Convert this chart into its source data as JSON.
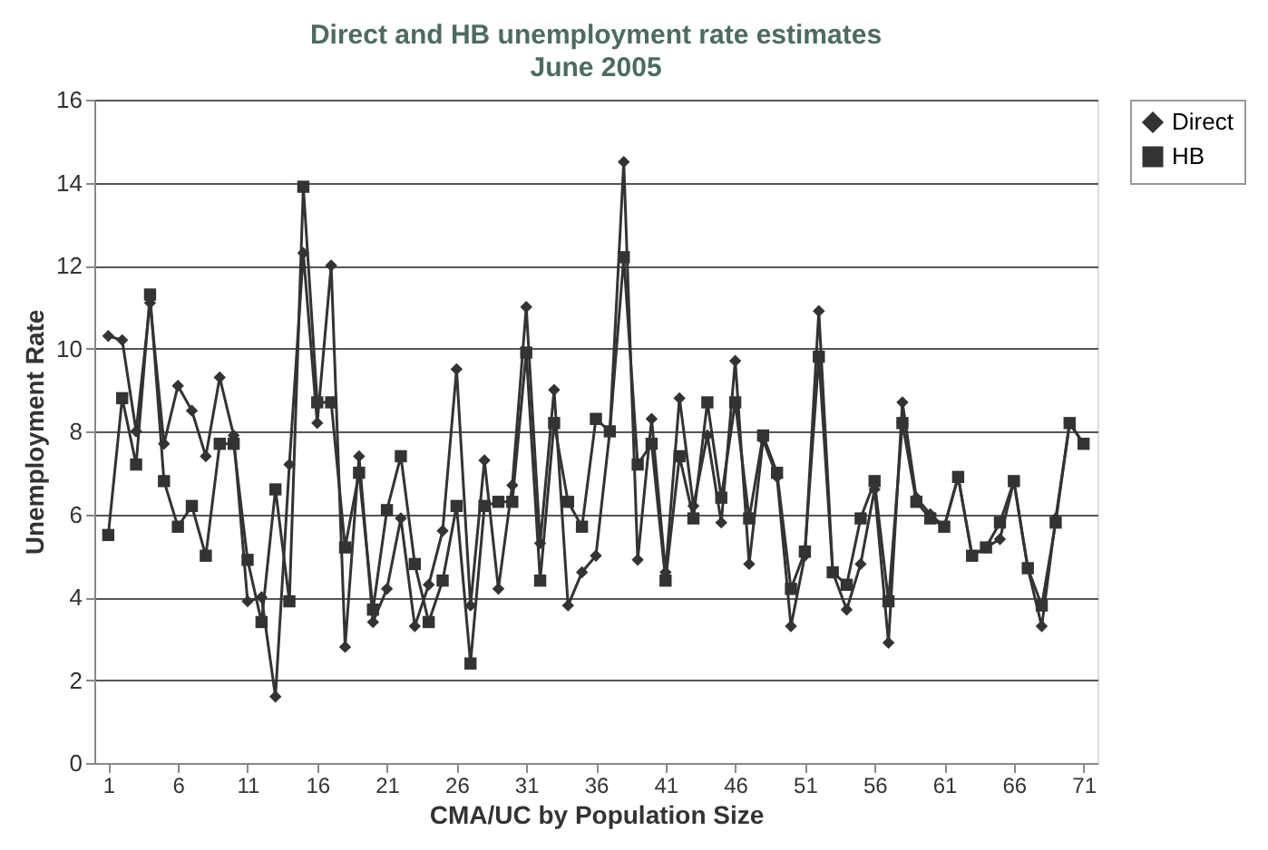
{
  "chart_data": {
    "type": "line",
    "title": "Direct and HB unemployment rate estimates",
    "subtitle": "June 2005",
    "xlabel": "CMA/UC by Population Size",
    "ylabel": "Unemployment Rate",
    "x": [
      1,
      2,
      3,
      4,
      5,
      6,
      7,
      8,
      9,
      10,
      11,
      12,
      13,
      14,
      15,
      16,
      17,
      18,
      19,
      20,
      21,
      22,
      23,
      24,
      25,
      26,
      27,
      28,
      29,
      30,
      31,
      32,
      33,
      34,
      35,
      36,
      37,
      38,
      39,
      40,
      41,
      42,
      43,
      44,
      45,
      46,
      47,
      48,
      49,
      50,
      51,
      52,
      53,
      54,
      55,
      56,
      57,
      58,
      59,
      60,
      61,
      62,
      63,
      64,
      65,
      66,
      67,
      68,
      69,
      70,
      71
    ],
    "series": [
      {
        "name": "Direct",
        "color": "#333333",
        "marker": "diamond",
        "values": [
          10.3,
          10.2,
          8.0,
          11.1,
          7.7,
          9.1,
          8.5,
          7.4,
          9.3,
          7.9,
          3.9,
          4.0,
          1.6,
          7.2,
          12.3,
          8.2,
          12.0,
          2.8,
          7.4,
          3.4,
          4.2,
          5.9,
          3.3,
          4.3,
          5.6,
          9.5,
          3.8,
          7.3,
          4.2,
          6.7,
          11.0,
          5.3,
          9.0,
          3.8,
          4.6,
          5.0,
          8.0,
          14.5,
          4.9,
          8.3,
          4.6,
          8.8,
          6.2,
          7.9,
          5.8,
          9.7,
          4.8,
          7.8,
          6.9,
          3.3,
          5.0,
          10.9,
          4.6,
          3.7,
          4.8,
          6.6,
          2.9,
          8.7,
          6.4,
          6.0,
          5.7,
          6.9,
          5.0,
          5.2,
          5.4,
          6.8,
          4.7,
          3.3,
          5.9,
          8.2,
          7.7
        ]
      },
      {
        "name": "HB",
        "color": "#333333",
        "marker": "square",
        "values": [
          5.5,
          8.8,
          7.2,
          11.3,
          6.8,
          5.7,
          6.2,
          5.0,
          7.7,
          7.7,
          4.9,
          3.4,
          6.6,
          3.9,
          13.9,
          8.7,
          8.7,
          5.2,
          7.0,
          3.7,
          6.1,
          7.4,
          4.8,
          3.4,
          4.4,
          6.2,
          2.4,
          6.2,
          6.3,
          6.3,
          9.9,
          4.4,
          8.2,
          6.3,
          5.7,
          8.3,
          8.0,
          12.2,
          7.2,
          7.7,
          4.4,
          7.4,
          5.9,
          8.7,
          6.4,
          8.7,
          5.9,
          7.9,
          7.0,
          4.2,
          5.1,
          9.8,
          4.6,
          4.3,
          5.9,
          6.8,
          3.9,
          8.2,
          6.3,
          5.9,
          5.7,
          6.9,
          5.0,
          5.2,
          5.8,
          6.8,
          4.7,
          3.8,
          5.8,
          8.2,
          7.7
        ]
      }
    ],
    "xlim": [
      0,
      72
    ],
    "xticks": [
      1,
      6,
      11,
      16,
      21,
      26,
      31,
      36,
      41,
      46,
      51,
      56,
      61,
      66,
      71
    ],
    "ylim": [
      0,
      16
    ],
    "yticks": [
      0,
      2,
      4,
      6,
      8,
      10,
      12,
      14,
      16
    ],
    "grid": "y",
    "legend": "right",
    "line_style": "solid"
  }
}
